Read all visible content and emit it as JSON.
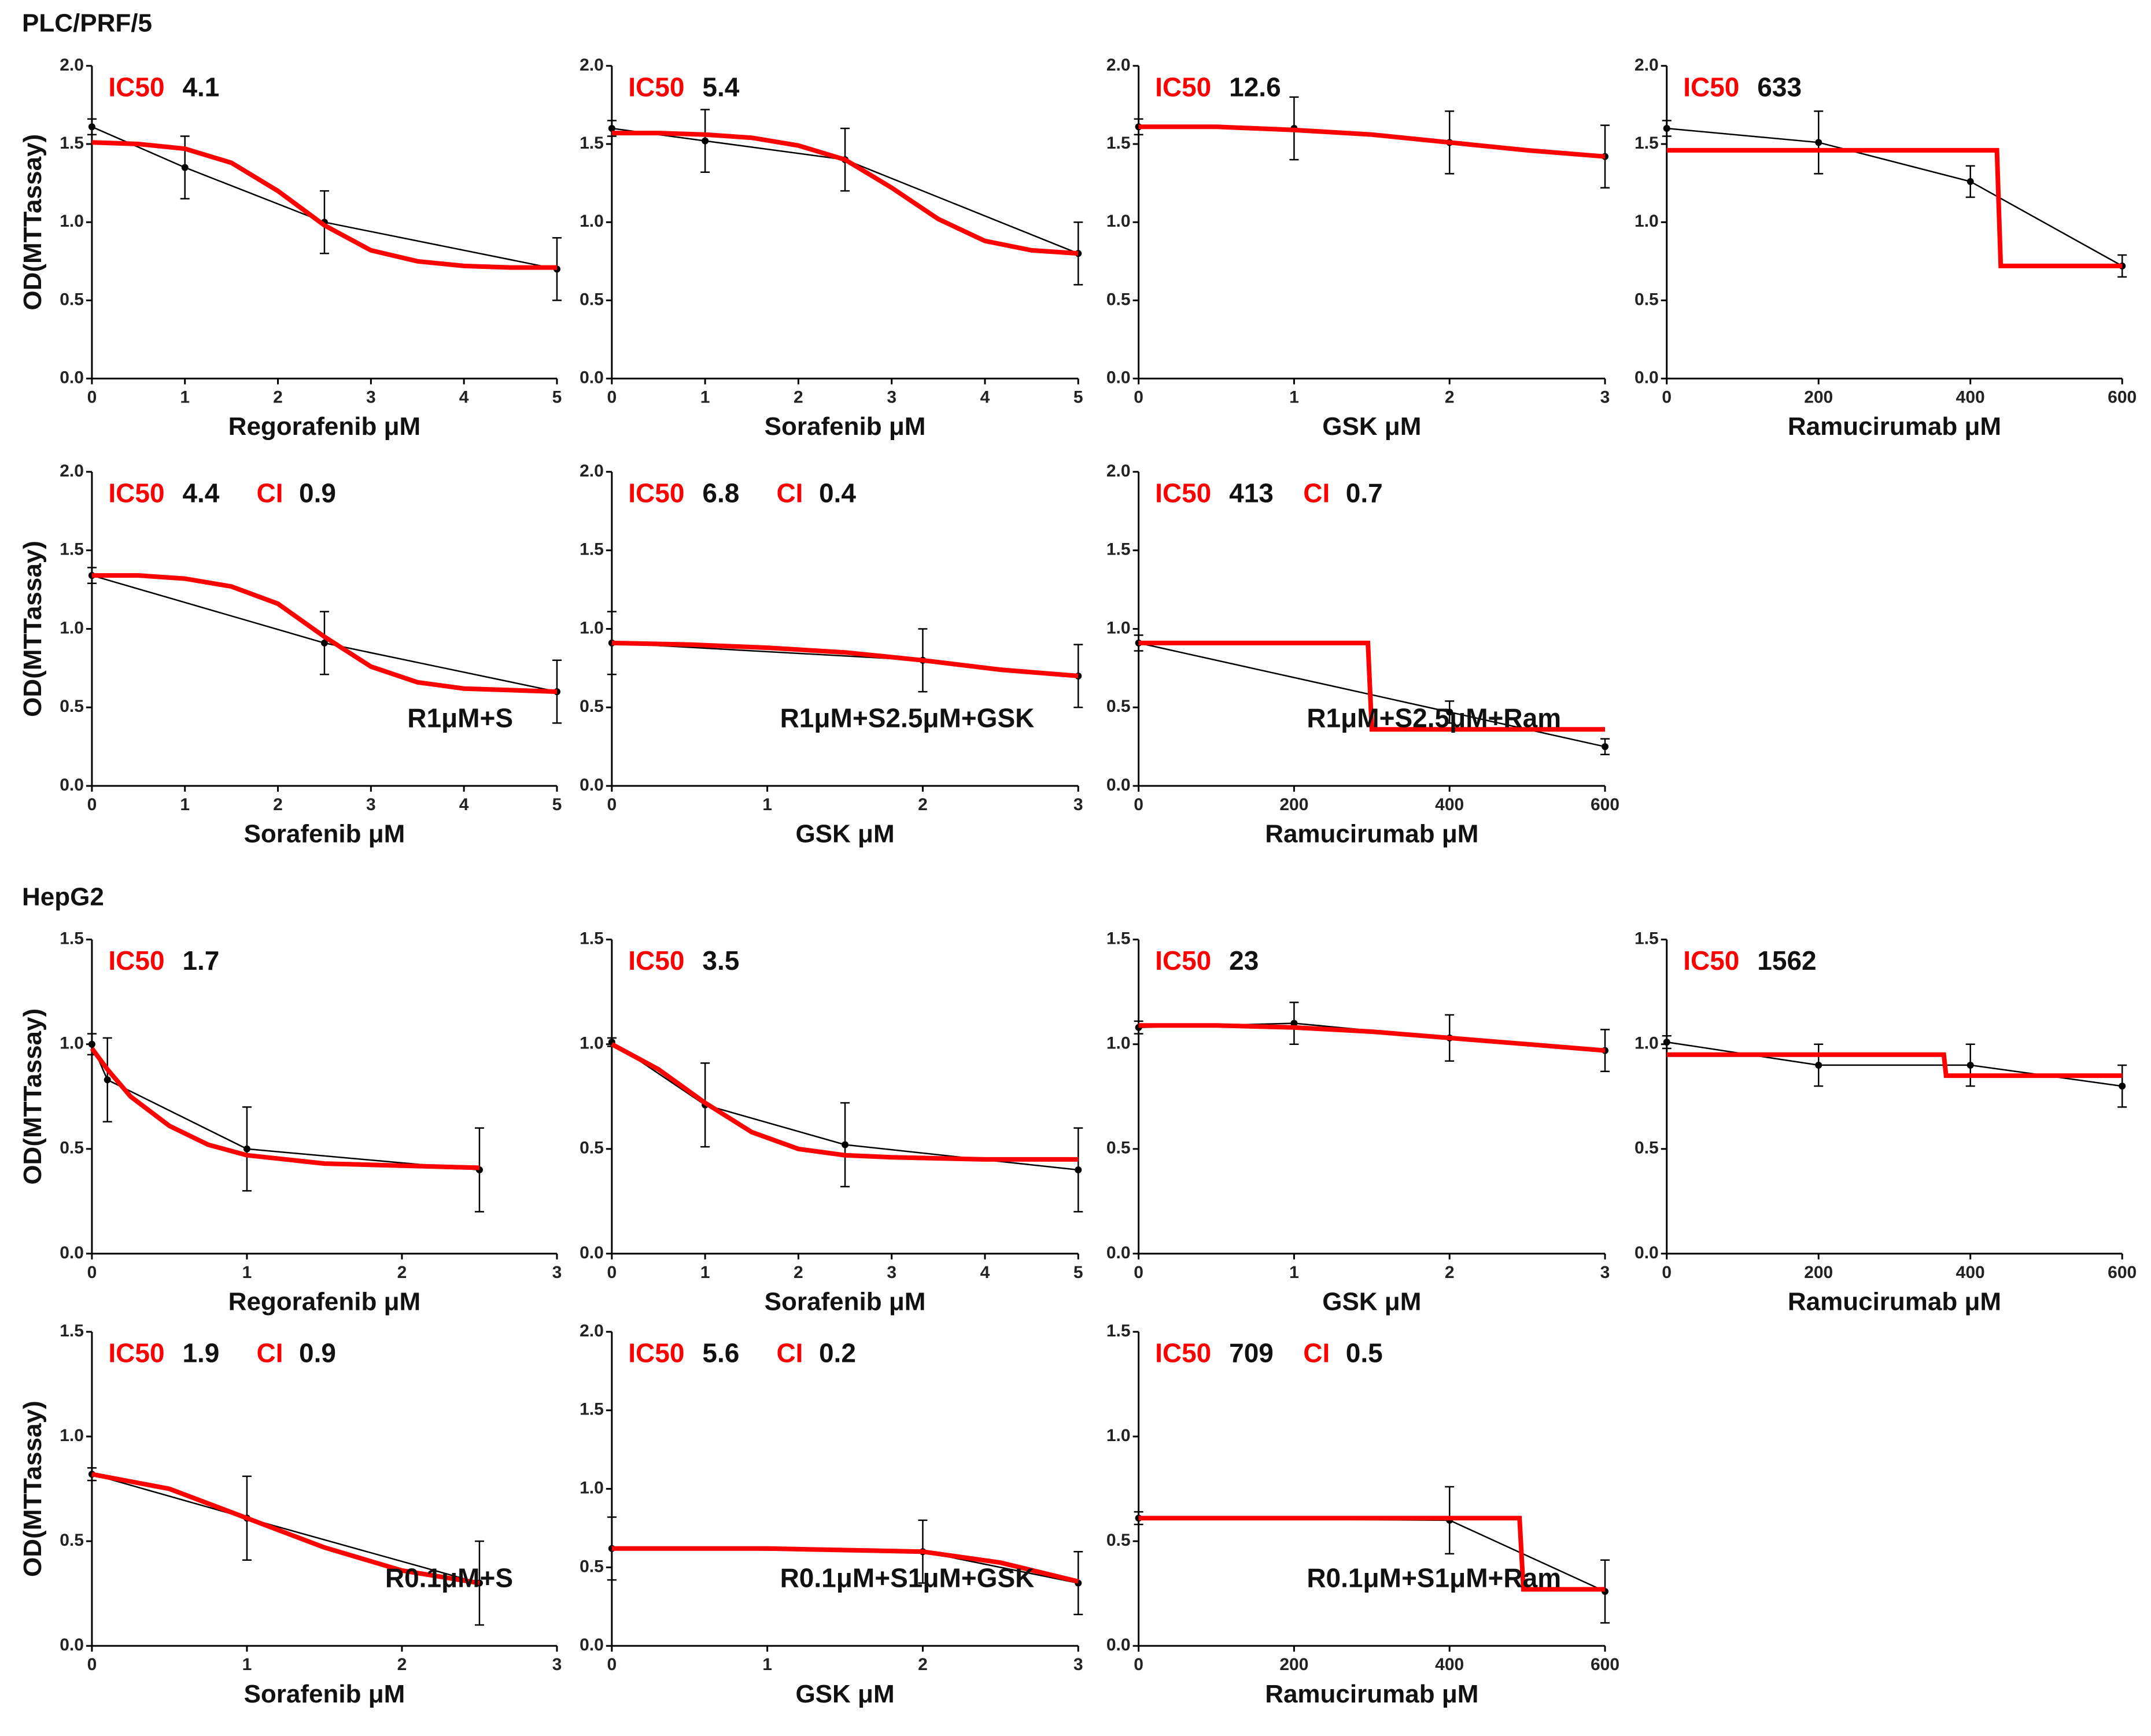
{
  "sections": [
    "PLC/PRF/5",
    "HepG2"
  ],
  "chart_data": [
    {
      "type": "line",
      "ylabel": "OD(MTTassay)",
      "xlabel": "Regorafenib μM",
      "ic50_label": "IC50",
      "ic50": 4.1,
      "xlim": [
        0,
        5
      ],
      "xticks": [
        0,
        1,
        2,
        3,
        4,
        5
      ],
      "ylim": [
        0,
        2
      ],
      "yticks": [
        {
          "value": 0,
          "label": "0.0"
        },
        {
          "value": 0.5,
          "label": "0.5"
        },
        {
          "value": 1,
          "label": "1.0"
        },
        {
          "value": 1.5,
          "label": "1.5"
        },
        {
          "value": 2,
          "label": "2.0"
        }
      ],
      "series": [
        {
          "color": "#000000",
          "x": [
            0,
            1,
            2.5,
            5
          ],
          "values": [
            1.61,
            1.35,
            1.0,
            0.7
          ],
          "error": [
            0.05,
            0.2,
            0.2,
            0.2
          ]
        },
        {
          "color": "#ff0000",
          "x": [
            0,
            0.5,
            1,
            1.5,
            2,
            2.5,
            3,
            3.5,
            4,
            4.5,
            5
          ],
          "values": [
            1.51,
            1.5,
            1.47,
            1.38,
            1.2,
            0.98,
            0.82,
            0.75,
            0.72,
            0.71,
            0.71
          ]
        }
      ]
    },
    {
      "type": "line",
      "xlabel": "Sorafenib μM",
      "ic50_label": "IC50",
      "ic50": 5.4,
      "xlim": [
        0,
        5
      ],
      "xticks": [
        0,
        1,
        2,
        3,
        4,
        5
      ],
      "ylim": [
        0,
        2
      ],
      "yticks": [
        {
          "value": 0,
          "label": "0.0"
        },
        {
          "value": 0.5,
          "label": "0.5"
        },
        {
          "value": 1,
          "label": "1.0"
        },
        {
          "value": 1.5,
          "label": "1.5"
        },
        {
          "value": 2,
          "label": "2.0"
        }
      ],
      "series": [
        {
          "color": "#000000",
          "x": [
            0,
            1,
            2.5,
            5
          ],
          "values": [
            1.6,
            1.52,
            1.4,
            0.8
          ],
          "error": [
            0.05,
            0.2,
            0.2,
            0.2
          ]
        },
        {
          "color": "#ff0000",
          "x": [
            0,
            0.5,
            1,
            1.5,
            2,
            2.5,
            3,
            3.5,
            4,
            4.5,
            5
          ],
          "values": [
            1.57,
            1.57,
            1.56,
            1.54,
            1.49,
            1.4,
            1.22,
            1.02,
            0.88,
            0.82,
            0.8
          ]
        }
      ]
    },
    {
      "type": "line",
      "xlabel": "GSK μM",
      "ic50_label": "IC50",
      "ic50": 12.6,
      "xlim": [
        0,
        3
      ],
      "xticks": [
        0,
        1,
        2,
        3
      ],
      "ylim": [
        0,
        2
      ],
      "yticks": [
        {
          "value": 0,
          "label": "0.0"
        },
        {
          "value": 0.5,
          "label": "0.5"
        },
        {
          "value": 1,
          "label": "1.0"
        },
        {
          "value": 1.5,
          "label": "1.5"
        },
        {
          "value": 2,
          "label": "2.0"
        }
      ],
      "series": [
        {
          "color": "#000000",
          "x": [
            0,
            1,
            2,
            3
          ],
          "values": [
            1.61,
            1.6,
            1.51,
            1.42
          ],
          "error": [
            0.05,
            0.2,
            0.2,
            0.2
          ]
        },
        {
          "color": "#ff0000",
          "x": [
            0,
            0.5,
            1,
            1.5,
            2,
            2.5,
            3
          ],
          "values": [
            1.61,
            1.61,
            1.59,
            1.56,
            1.51,
            1.46,
            1.42
          ]
        }
      ]
    },
    {
      "type": "line",
      "xlabel": "Ramucirumab μM",
      "ic50_label": "IC50",
      "ic50": 633,
      "xlim": [
        0,
        600
      ],
      "xticks": [
        0,
        200,
        400,
        600
      ],
      "ylim": [
        0,
        2
      ],
      "yticks": [
        {
          "value": 0,
          "label": "0.0"
        },
        {
          "value": 0.5,
          "label": "0.5"
        },
        {
          "value": 1,
          "label": "1.0"
        },
        {
          "value": 1.5,
          "label": "1.5"
        },
        {
          "value": 2,
          "label": "2.0"
        }
      ],
      "series": [
        {
          "color": "#000000",
          "x": [
            0,
            200,
            400,
            600
          ],
          "values": [
            1.6,
            1.51,
            1.26,
            0.72
          ],
          "error": [
            0.05,
            0.2,
            0.1,
            0.07
          ]
        },
        {
          "color": "#ff0000",
          "x": [
            0,
            435,
            440,
            600
          ],
          "values": [
            1.46,
            1.46,
            0.72,
            0.72
          ]
        }
      ]
    },
    {
      "type": "line",
      "ylabel": "OD(MTTassay)",
      "xlabel": "Sorafenib μM",
      "ic50_label": "IC50",
      "ic50": 4.4,
      "ci_label": "CI",
      "ci": 0.9,
      "note": "R1μM+S",
      "xlim": [
        0,
        5
      ],
      "xticks": [
        0,
        1,
        2,
        3,
        4,
        5
      ],
      "ylim": [
        0,
        2
      ],
      "yticks": [
        {
          "value": 0,
          "label": "0.0"
        },
        {
          "value": 0.5,
          "label": "0.5"
        },
        {
          "value": 1,
          "label": "1.0"
        },
        {
          "value": 1.5,
          "label": "1.5"
        },
        {
          "value": 2,
          "label": "2.0"
        }
      ],
      "series": [
        {
          "color": "#000000",
          "x": [
            0,
            2.5,
            5
          ],
          "values": [
            1.34,
            0.91,
            0.6
          ],
          "error": [
            0.05,
            0.2,
            0.2
          ]
        },
        {
          "color": "#ff0000",
          "x": [
            0,
            0.5,
            1,
            1.5,
            2,
            2.5,
            3,
            3.5,
            4,
            4.5,
            5
          ],
          "values": [
            1.34,
            1.34,
            1.32,
            1.27,
            1.16,
            0.95,
            0.76,
            0.66,
            0.62,
            0.61,
            0.6
          ]
        }
      ]
    },
    {
      "type": "line",
      "xlabel": "GSK μM",
      "ic50_label": "IC50",
      "ic50": 6.8,
      "ci_label": "CI",
      "ci": 0.4,
      "note": "R1μM+S2.5μM+GSK",
      "xlim": [
        0,
        3
      ],
      "xticks": [
        0,
        1,
        2,
        3
      ],
      "ylim": [
        0,
        2
      ],
      "yticks": [
        {
          "value": 0,
          "label": "0.0"
        },
        {
          "value": 0.5,
          "label": "0.5"
        },
        {
          "value": 1,
          "label": "1.0"
        },
        {
          "value": 1.5,
          "label": "1.5"
        },
        {
          "value": 2,
          "label": "2.0"
        }
      ],
      "series": [
        {
          "color": "#000000",
          "x": [
            0,
            2,
            3
          ],
          "values": [
            0.91,
            0.8,
            0.7
          ],
          "error": [
            0.2,
            0.2,
            0.2
          ]
        },
        {
          "color": "#ff0000",
          "x": [
            0,
            0.5,
            1,
            1.5,
            2,
            2.5,
            3
          ],
          "values": [
            0.91,
            0.9,
            0.88,
            0.85,
            0.8,
            0.74,
            0.7
          ]
        }
      ]
    },
    {
      "type": "line",
      "xlabel": "Ramucirumab μM",
      "ic50_label": "IC50",
      "ic50": 413,
      "ci_label": "CI",
      "ci": 0.7,
      "note": "R1μM+S2.5μM+Ram",
      "xlim": [
        0,
        600
      ],
      "xticks": [
        0,
        200,
        400,
        600
      ],
      "ylim": [
        0,
        2
      ],
      "yticks": [
        {
          "value": 0,
          "label": "0.0"
        },
        {
          "value": 0.5,
          "label": "0.5"
        },
        {
          "value": 1,
          "label": "1.0"
        },
        {
          "value": 1.5,
          "label": "1.5"
        },
        {
          "value": 2,
          "label": "2.0"
        }
      ],
      "series": [
        {
          "color": "#000000",
          "x": [
            0,
            400,
            600
          ],
          "values": [
            0.91,
            0.47,
            0.25
          ],
          "error": [
            0.05,
            0.07,
            0.05
          ]
        },
        {
          "color": "#ff0000",
          "x": [
            0,
            295,
            300,
            600
          ],
          "values": [
            0.91,
            0.91,
            0.36,
            0.36
          ]
        }
      ]
    },
    {
      "type": "line",
      "ylabel": "OD(MTTassay)",
      "xlabel": "Regorafenib μM",
      "ic50_label": "IC50",
      "ic50": 1.7,
      "xlim": [
        0,
        3
      ],
      "xticks": [
        0,
        1,
        2,
        3
      ],
      "ylim": [
        0,
        1.5
      ],
      "yticks": [
        {
          "value": 0,
          "label": "0.0"
        },
        {
          "value": 0.5,
          "label": "0.5"
        },
        {
          "value": 1,
          "label": "1.0"
        },
        {
          "value": 1.5,
          "label": "1.5"
        }
      ],
      "series": [
        {
          "color": "#000000",
          "x": [
            0,
            0.1,
            1,
            2.5
          ],
          "values": [
            1.0,
            0.83,
            0.5,
            0.4
          ],
          "error": [
            0.05,
            0.2,
            0.2,
            0.2
          ]
        },
        {
          "color": "#ff0000",
          "x": [
            0,
            0.1,
            0.25,
            0.5,
            0.75,
            1,
            1.5,
            2,
            2.5
          ],
          "values": [
            0.98,
            0.88,
            0.75,
            0.61,
            0.52,
            0.47,
            0.43,
            0.42,
            0.41
          ]
        }
      ]
    },
    {
      "type": "line",
      "xlabel": "Sorafenib μM",
      "ic50_label": "IC50",
      "ic50": 3.5,
      "xlim": [
        0,
        5
      ],
      "xticks": [
        0,
        1,
        2,
        3,
        4,
        5
      ],
      "ylim": [
        0,
        1.5
      ],
      "yticks": [
        {
          "value": 0,
          "label": "0.0"
        },
        {
          "value": 0.5,
          "label": "0.5"
        },
        {
          "value": 1,
          "label": "1.0"
        },
        {
          "value": 1.5,
          "label": "1.5"
        }
      ],
      "series": [
        {
          "color": "#000000",
          "x": [
            0,
            1,
            2.5,
            5
          ],
          "values": [
            1.01,
            0.71,
            0.52,
            0.4
          ],
          "error": [
            0.02,
            0.2,
            0.2,
            0.2
          ]
        },
        {
          "color": "#ff0000",
          "x": [
            0,
            0.5,
            1,
            1.5,
            2,
            2.5,
            3,
            4,
            5
          ],
          "values": [
            1.0,
            0.88,
            0.72,
            0.58,
            0.5,
            0.47,
            0.46,
            0.45,
            0.45
          ]
        }
      ]
    },
    {
      "type": "line",
      "xlabel": "GSK μM",
      "ic50_label": "IC50",
      "ic50": 23,
      "xlim": [
        0,
        3
      ],
      "xticks": [
        0,
        1,
        2,
        3
      ],
      "ylim": [
        0,
        1.5
      ],
      "yticks": [
        {
          "value": 0,
          "label": "0.0"
        },
        {
          "value": 0.5,
          "label": "0.5"
        },
        {
          "value": 1,
          "label": "1.0"
        },
        {
          "value": 1.5,
          "label": "1.5"
        }
      ],
      "series": [
        {
          "color": "#000000",
          "x": [
            0,
            1,
            2,
            3
          ],
          "values": [
            1.08,
            1.1,
            1.03,
            0.97
          ],
          "error": [
            0.03,
            0.1,
            0.11,
            0.1
          ]
        },
        {
          "color": "#ff0000",
          "x": [
            0,
            0.5,
            1,
            1.5,
            2,
            2.5,
            3
          ],
          "values": [
            1.09,
            1.09,
            1.08,
            1.06,
            1.03,
            1.0,
            0.97
          ]
        }
      ]
    },
    {
      "type": "line",
      "xlabel": "Ramucirumab μM",
      "ic50_label": "IC50",
      "ic50": 1562,
      "xlim": [
        0,
        600
      ],
      "xticks": [
        0,
        200,
        400,
        600
      ],
      "ylim": [
        0,
        1.5
      ],
      "yticks": [
        {
          "value": 0,
          "label": "0.0"
        },
        {
          "value": 0.5,
          "label": "0.5"
        },
        {
          "value": 1,
          "label": "1.0"
        },
        {
          "value": 1.5,
          "label": "1.5"
        }
      ],
      "series": [
        {
          "color": "#000000",
          "x": [
            0,
            200,
            400,
            600
          ],
          "values": [
            1.01,
            0.9,
            0.9,
            0.8
          ],
          "error": [
            0.03,
            0.1,
            0.1,
            0.1
          ]
        },
        {
          "color": "#ff0000",
          "x": [
            0,
            365,
            368,
            600
          ],
          "values": [
            0.95,
            0.95,
            0.85,
            0.85
          ]
        }
      ]
    },
    {
      "type": "line",
      "ylabel": "OD(MTTassay)",
      "xlabel": "Sorafenib μM",
      "ic50_label": "IC50",
      "ic50": 1.9,
      "ci_label": "CI",
      "ci": 0.9,
      "note": "R0.1μM+S",
      "xlim": [
        0,
        3
      ],
      "xticks": [
        0,
        1,
        2,
        3
      ],
      "ylim": [
        0,
        1.5
      ],
      "yticks": [
        {
          "value": 0,
          "label": "0.0"
        },
        {
          "value": 0.5,
          "label": "0.5"
        },
        {
          "value": 1,
          "label": "1.0"
        },
        {
          "value": 1.5,
          "label": "1.5"
        }
      ],
      "series": [
        {
          "color": "#000000",
          "x": [
            0,
            1,
            2.5
          ],
          "values": [
            0.82,
            0.61,
            0.3
          ],
          "error": [
            0.03,
            0.2,
            0.2
          ]
        },
        {
          "color": "#ff0000",
          "x": [
            0,
            0.5,
            1,
            1.5,
            2,
            2.5
          ],
          "values": [
            0.82,
            0.75,
            0.61,
            0.47,
            0.36,
            0.3
          ]
        }
      ]
    },
    {
      "type": "line",
      "xlabel": "GSK μM",
      "ic50_label": "IC50",
      "ic50": 5.6,
      "ci_label": "CI",
      "ci": 0.2,
      "note": "R0.1μM+S1μM+GSK",
      "xlim": [
        0,
        3
      ],
      "xticks": [
        0,
        1,
        2,
        3
      ],
      "ylim": [
        0,
        2
      ],
      "yticks": [
        {
          "value": 0,
          "label": "0.0"
        },
        {
          "value": 0.5,
          "label": "0.5"
        },
        {
          "value": 1,
          "label": "1.0"
        },
        {
          "value": 1.5,
          "label": "1.5"
        },
        {
          "value": 2,
          "label": "2.0"
        }
      ],
      "series": [
        {
          "color": "#000000",
          "x": [
            0,
            2,
            3
          ],
          "values": [
            0.62,
            0.6,
            0.4
          ],
          "error": [
            0.2,
            0.2,
            0.2
          ]
        },
        {
          "color": "#ff0000",
          "x": [
            0,
            1,
            2,
            2.5,
            3
          ],
          "values": [
            0.62,
            0.62,
            0.6,
            0.53,
            0.41
          ]
        }
      ]
    },
    {
      "type": "line",
      "xlabel": "Ramucirumab μM",
      "ic50_label": "IC50",
      "ic50": 709,
      "ci_label": "CI",
      "ci": 0.5,
      "note": "R0.1μM+S1μM+Ram",
      "xlim": [
        0,
        600
      ],
      "xticks": [
        0,
        200,
        400,
        600
      ],
      "ylim": [
        0,
        1.5
      ],
      "yticks": [
        {
          "value": 0,
          "label": "0.0"
        },
        {
          "value": 0.5,
          "label": "0.5"
        },
        {
          "value": 1,
          "label": "1.0"
        },
        {
          "value": 1.5,
          "label": "1.5"
        }
      ],
      "series": [
        {
          "color": "#000000",
          "x": [
            0,
            400,
            600
          ],
          "values": [
            0.61,
            0.6,
            0.26
          ],
          "error": [
            0.03,
            0.16,
            0.15
          ]
        },
        {
          "color": "#ff0000",
          "x": [
            0,
            490,
            495,
            600
          ],
          "values": [
            0.61,
            0.61,
            0.27,
            0.27
          ]
        }
      ]
    }
  ]
}
